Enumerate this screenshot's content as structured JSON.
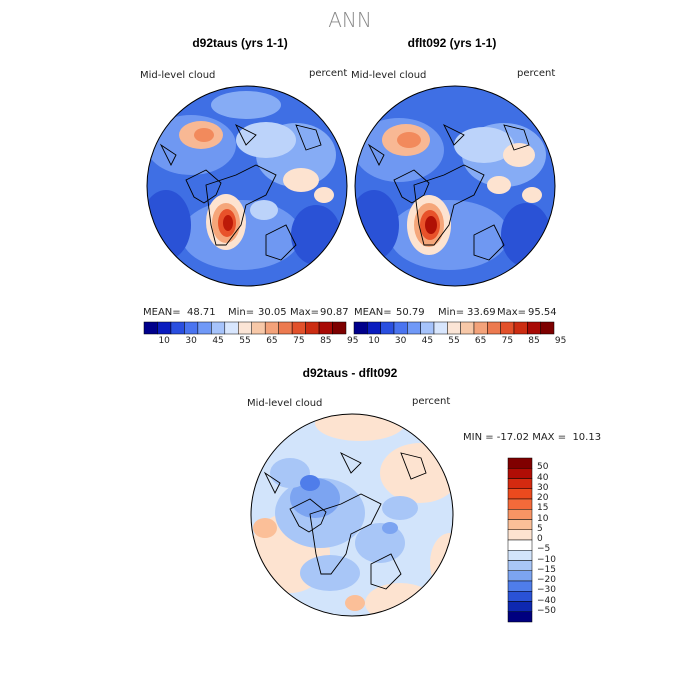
{
  "title": "ANN",
  "panels": [
    {
      "title": "d92taus (yrs 1-1)",
      "field_label": "Mid-level cloud",
      "units": "percent",
      "stats": {
        "mean_label": "MEAN=",
        "mean": "48.71",
        "min_label": "Min=",
        "min": "30.05",
        "max_label": "Max=",
        "max": "90.87"
      }
    },
    {
      "title": "dflt092 (yrs 1-1)",
      "field_label": "Mid-level cloud",
      "units": "percent",
      "stats": {
        "mean_label": "MEAN=",
        "mean": "50.79",
        "min_label": "Min=",
        "min": "33.69",
        "max_label": "Max=",
        "max": "95.54"
      }
    }
  ],
  "colorbar_top": {
    "tick_labels": [
      "10",
      "30",
      "45",
      "55",
      "65",
      "75",
      "85",
      "95"
    ],
    "colors": [
      "#00008b",
      "#0a1cbf",
      "#2a4fe0",
      "#4a74f0",
      "#7099f7",
      "#a6c3fb",
      "#d8e6fd",
      "#fbe5d6",
      "#f7c8a8",
      "#f3a27a",
      "#ec7a50",
      "#e2512b",
      "#cc2d12",
      "#a80a05",
      "#7d0000"
    ]
  },
  "diff_panel": {
    "title": "d92taus - dflt092",
    "field_label": "Mid-level cloud",
    "units": "percent",
    "minmax_text": "MIN = -17.02 MAX =  10.13",
    "legend": {
      "tick_labels": [
        "50",
        "40",
        "30",
        "20",
        "15",
        "10",
        "5",
        "0",
        "−5",
        "−10",
        "−15",
        "−20",
        "−30",
        "−40",
        "−50"
      ],
      "colors": [
        "#800000",
        "#b00d05",
        "#d42a10",
        "#ec4a1e",
        "#f46a3a",
        "#f89464",
        "#fbbf98",
        "#fde3d0",
        "#ffffff",
        "#d2e4fb",
        "#a8c6f7",
        "#7ca4f1",
        "#4f7dea",
        "#2a52d6",
        "#0e28b0",
        "#00007f"
      ]
    }
  }
}
